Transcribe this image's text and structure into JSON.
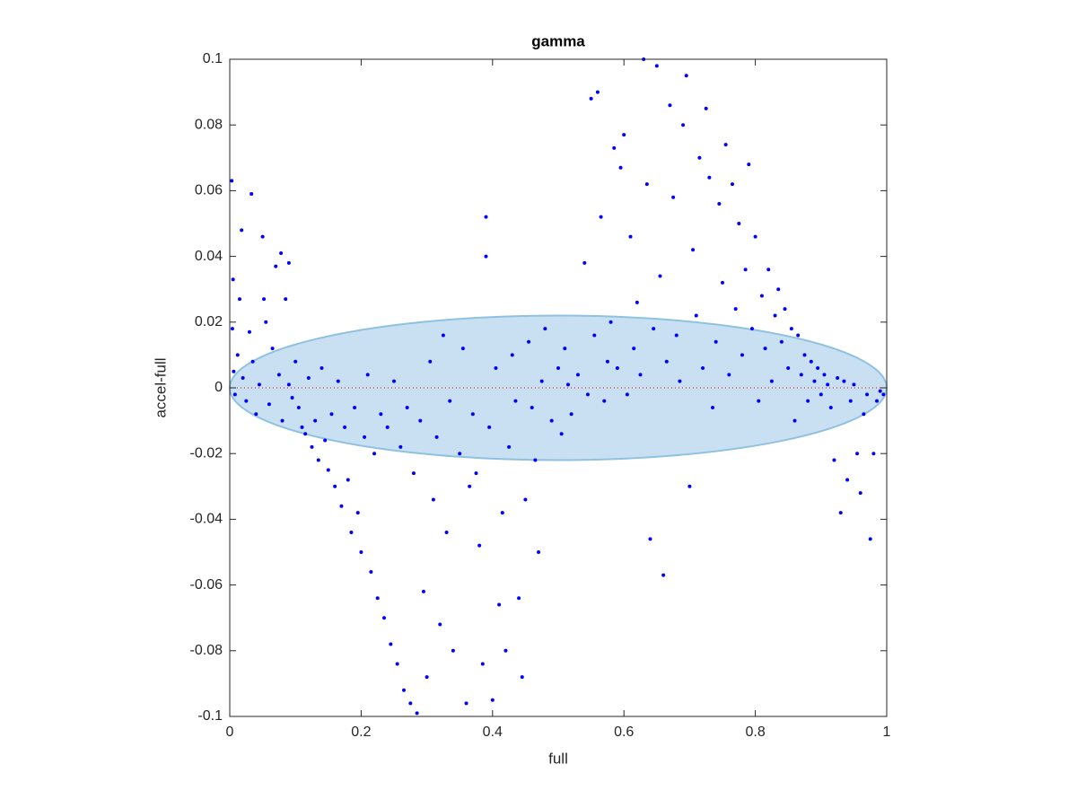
{
  "chart_data": {
    "type": "scatter",
    "title": "gamma",
    "xlabel": "full",
    "ylabel": "accel-full",
    "xlim": [
      0,
      1
    ],
    "ylim": [
      -0.1,
      0.1
    ],
    "xticks": [
      0,
      0.2,
      0.4,
      0.6,
      0.8,
      1
    ],
    "yticks": [
      -0.1,
      -0.08,
      -0.06,
      -0.04,
      -0.02,
      0,
      0.02,
      0.04,
      0.06,
      0.08,
      0.1
    ],
    "grid": false,
    "ellipse": {
      "center": [
        0.5,
        0
      ],
      "radii": [
        0.5,
        0.022
      ],
      "color": "#c9e0f2",
      "edge_color": "#8fc1e0"
    },
    "hline": {
      "value": 0,
      "color": "#ff0000",
      "style": "dotted"
    },
    "series": [
      {
        "color": "#0000ff",
        "x": [
          0.003,
          0.005,
          0.004,
          0.006,
          0.008,
          0.012,
          0.015,
          0.018,
          0.02,
          0.025,
          0.03,
          0.033,
          0.035,
          0.04,
          0.045,
          0.05,
          0.052,
          0.055,
          0.06,
          0.065,
          0.07,
          0.075,
          0.078,
          0.08,
          0.085,
          0.09,
          0.095,
          0.09,
          0.1,
          0.105,
          0.11,
          0.115,
          0.12,
          0.125,
          0.13,
          0.135,
          0.14,
          0.145,
          0.15,
          0.155,
          0.16,
          0.165,
          0.17,
          0.175,
          0.18,
          0.185,
          0.19,
          0.195,
          0.2,
          0.205,
          0.21,
          0.215,
          0.22,
          0.225,
          0.23,
          0.235,
          0.24,
          0.245,
          0.25,
          0.255,
          0.26,
          0.265,
          0.27,
          0.275,
          0.28,
          0.285,
          0.29,
          0.295,
          0.3,
          0.305,
          0.31,
          0.315,
          0.32,
          0.325,
          0.33,
          0.335,
          0.34,
          0.35,
          0.355,
          0.36,
          0.365,
          0.37,
          0.375,
          0.38,
          0.385,
          0.39,
          0.39,
          0.395,
          0.4,
          0.405,
          0.41,
          0.415,
          0.42,
          0.425,
          0.43,
          0.435,
          0.44,
          0.445,
          0.45,
          0.455,
          0.46,
          0.465,
          0.47,
          0.475,
          0.48,
          0.49,
          0.5,
          0.505,
          0.51,
          0.515,
          0.52,
          0.53,
          0.54,
          0.545,
          0.55,
          0.555,
          0.56,
          0.565,
          0.57,
          0.575,
          0.58,
          0.585,
          0.59,
          0.595,
          0.6,
          0.605,
          0.61,
          0.615,
          0.62,
          0.625,
          0.63,
          0.635,
          0.64,
          0.645,
          0.65,
          0.655,
          0.66,
          0.665,
          0.67,
          0.675,
          0.68,
          0.685,
          0.69,
          0.695,
          0.7,
          0.705,
          0.71,
          0.715,
          0.72,
          0.725,
          0.73,
          0.735,
          0.74,
          0.745,
          0.75,
          0.755,
          0.76,
          0.765,
          0.77,
          0.775,
          0.78,
          0.785,
          0.79,
          0.795,
          0.8,
          0.805,
          0.81,
          0.815,
          0.82,
          0.825,
          0.83,
          0.835,
          0.84,
          0.845,
          0.85,
          0.855,
          0.86,
          0.865,
          0.87,
          0.875,
          0.88,
          0.885,
          0.89,
          0.895,
          0.9,
          0.905,
          0.91,
          0.915,
          0.92,
          0.925,
          0.93,
          0.935,
          0.94,
          0.945,
          0.95,
          0.955,
          0.96,
          0.965,
          0.97,
          0.975,
          0.98,
          0.985,
          0.99,
          0.995
        ],
        "values": [
          0.063,
          0.033,
          0.018,
          0.005,
          -0.002,
          0.01,
          0.027,
          0.048,
          0.003,
          -0.004,
          0.017,
          0.059,
          0.008,
          -0.008,
          0.001,
          0.046,
          0.027,
          0.02,
          -0.005,
          0.012,
          0.037,
          0.004,
          0.041,
          -0.01,
          0.027,
          0.001,
          -0.003,
          0.038,
          0.008,
          -0.006,
          -0.012,
          -0.014,
          0.003,
          -0.018,
          -0.01,
          -0.022,
          0.006,
          -0.016,
          -0.025,
          -0.008,
          -0.03,
          0.002,
          -0.036,
          -0.012,
          -0.028,
          -0.044,
          -0.006,
          -0.038,
          -0.05,
          -0.015,
          0.004,
          -0.056,
          -0.02,
          -0.064,
          -0.008,
          -0.07,
          -0.012,
          -0.078,
          0.002,
          -0.084,
          -0.018,
          -0.092,
          -0.006,
          -0.096,
          -0.026,
          -0.099,
          -0.01,
          -0.062,
          -0.088,
          0.008,
          -0.034,
          -0.015,
          -0.072,
          0.016,
          -0.044,
          -0.004,
          -0.08,
          -0.02,
          0.012,
          -0.096,
          -0.03,
          -0.008,
          -0.026,
          -0.048,
          -0.084,
          0.052,
          0.04,
          -0.012,
          -0.095,
          0.006,
          -0.066,
          -0.038,
          -0.08,
          -0.018,
          0.01,
          -0.004,
          -0.064,
          -0.088,
          -0.034,
          0.014,
          -0.006,
          -0.022,
          -0.05,
          0.002,
          0.018,
          -0.01,
          0.006,
          -0.014,
          0.012,
          0.001,
          -0.008,
          0.004,
          0.038,
          -0.002,
          0.088,
          0.016,
          0.09,
          0.052,
          -0.004,
          0.008,
          0.02,
          0.073,
          0.006,
          0.067,
          0.077,
          -0.002,
          0.046,
          0.012,
          0.026,
          0.004,
          0.1,
          0.062,
          -0.046,
          0.018,
          0.098,
          0.034,
          -0.057,
          0.008,
          0.086,
          0.058,
          0.016,
          0.002,
          0.08,
          0.095,
          -0.03,
          0.042,
          0.022,
          0.07,
          0.006,
          0.085,
          0.064,
          -0.006,
          0.014,
          0.056,
          0.032,
          0.074,
          0.004,
          0.062,
          0.024,
          0.05,
          0.01,
          0.036,
          0.068,
          0.018,
          0.046,
          -0.004,
          0.028,
          0.012,
          0.036,
          0.002,
          0.022,
          0.03,
          0.014,
          0.024,
          0.006,
          0.018,
          -0.01,
          0.016,
          0.004,
          0.01,
          -0.004,
          0.008,
          0.002,
          0.006,
          -0.002,
          0.004,
          0.001,
          -0.006,
          -0.022,
          0.003,
          -0.038,
          0.002,
          -0.028,
          -0.004,
          0.001,
          -0.02,
          -0.032,
          -0.008,
          -0.002,
          -0.046,
          -0.02,
          -0.004,
          -0.001,
          -0.002
        ]
      }
    ]
  }
}
